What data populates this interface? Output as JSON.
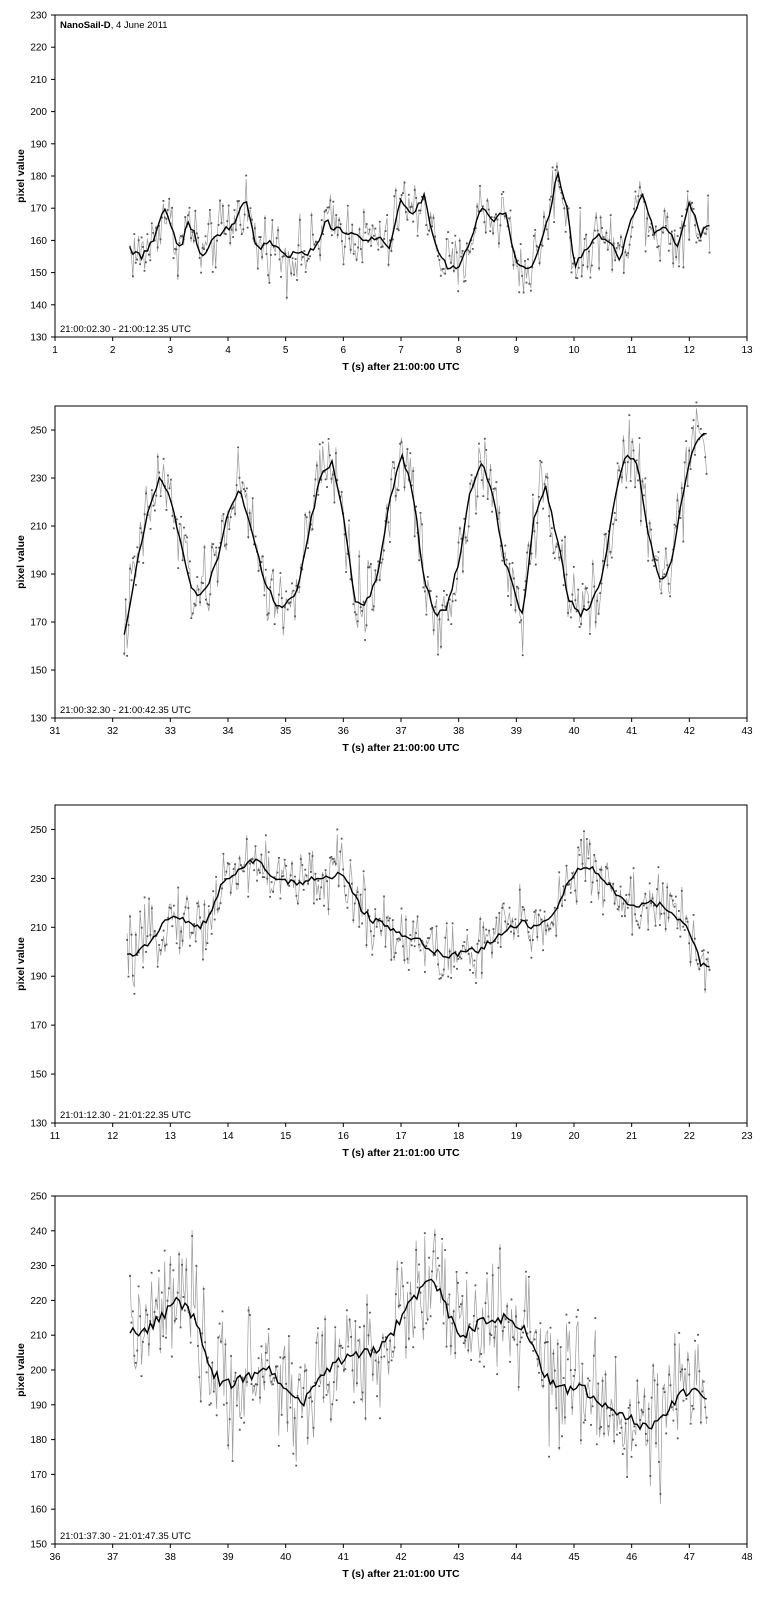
{
  "chart_data": [
    {
      "type": "line",
      "title_bold": "NanoSail-D",
      "title_rest": ", 4 June 2011",
      "xlabel": "T (s) after 21:00:00 UTC",
      "ylabel": "pixel value",
      "annotation": "21:00:02.30 - 21:00:12.35 UTC",
      "xlim": [
        1,
        13
      ],
      "ylim": [
        130,
        230
      ],
      "xticks": [
        1,
        2,
        3,
        4,
        5,
        6,
        7,
        8,
        9,
        10,
        11,
        12,
        13
      ],
      "yticks": [
        130,
        140,
        150,
        160,
        170,
        180,
        190,
        200,
        210,
        220,
        230
      ],
      "x_range": [
        2.3,
        12.35
      ],
      "series": [
        {
          "values_smooth_x": [
            2.3,
            2.5,
            2.7,
            2.9,
            3.1,
            3.2,
            3.3,
            3.4,
            3.5,
            3.6,
            3.7,
            3.9,
            4.1,
            4.3,
            4.4,
            4.5,
            4.7,
            4.9,
            5.0,
            5.2,
            5.4,
            5.6,
            5.7,
            5.8,
            5.9,
            6.0,
            6.2,
            6.4,
            6.6,
            6.8,
            7.0,
            7.2,
            7.4,
            7.6,
            7.8,
            8.0,
            8.2,
            8.4,
            8.6,
            8.8,
            9.0,
            9.2,
            9.4,
            9.6,
            9.7,
            9.8,
            9.9,
            10.0,
            10.2,
            10.4,
            10.6,
            10.8,
            11.0,
            11.2,
            11.4,
            11.6,
            11.8,
            12.0,
            12.2,
            12.35
          ],
          "values_smooth": [
            157,
            155,
            160,
            170,
            160,
            158,
            166,
            163,
            157,
            155,
            159,
            163,
            165,
            173,
            165,
            157,
            160,
            157,
            155,
            156,
            156,
            160,
            167,
            163,
            165,
            163,
            162,
            160,
            161,
            158,
            173,
            168,
            174,
            158,
            152,
            151,
            160,
            171,
            166,
            169,
            153,
            150,
            158,
            170,
            182,
            175,
            168,
            152,
            157,
            162,
            160,
            154,
            167,
            174,
            162,
            164,
            158,
            172,
            162,
            165
          ]
        }
      ]
    },
    {
      "type": "line",
      "xlabel": "T (s)  after 21:00:00 UTC",
      "ylabel": "pixel value",
      "annotation": "21:00:32.30 - 21:00:42.35 UTC",
      "xlim": [
        31,
        43
      ],
      "ylim": [
        130,
        260
      ],
      "xticks": [
        31,
        32,
        33,
        34,
        35,
        36,
        37,
        38,
        39,
        40,
        41,
        42,
        43
      ],
      "yticks": [
        130,
        150,
        170,
        190,
        210,
        230,
        250
      ],
      "x_range": [
        32.2,
        42.3
      ],
      "series": [
        {
          "values_smooth_x": [
            32.2,
            32.4,
            32.6,
            32.8,
            33.0,
            33.2,
            33.4,
            33.6,
            33.8,
            34.0,
            34.2,
            34.4,
            34.6,
            34.8,
            35.0,
            35.2,
            35.4,
            35.6,
            35.8,
            36.0,
            36.2,
            36.4,
            36.6,
            36.8,
            37.0,
            37.2,
            37.4,
            37.6,
            37.8,
            38.0,
            38.2,
            38.4,
            38.6,
            38.8,
            39.0,
            39.1,
            39.3,
            39.5,
            39.7,
            39.9,
            40.1,
            40.3,
            40.5,
            40.7,
            40.9,
            41.1,
            41.3,
            41.5,
            41.7,
            41.9,
            42.1,
            42.3
          ],
          "values_smooth": [
            165,
            192,
            214,
            230,
            222,
            200,
            182,
            182,
            195,
            216,
            226,
            210,
            190,
            178,
            177,
            183,
            208,
            230,
            237,
            215,
            178,
            178,
            190,
            220,
            240,
            225,
            188,
            172,
            176,
            195,
            225,
            237,
            222,
            195,
            180,
            172,
            212,
            227,
            206,
            180,
            173,
            178,
            190,
            220,
            240,
            235,
            205,
            186,
            196,
            225,
            245,
            248
          ]
        }
      ]
    },
    {
      "type": "line",
      "xlabel": "T (s)  after 21:01:00 UTC",
      "ylabel": "pixel value",
      "annotation": "21:01:12.30 - 21:01:22.35 UTC",
      "xlim": [
        11,
        23
      ],
      "ylim": [
        130,
        260
      ],
      "xticks": [
        11,
        12,
        13,
        14,
        15,
        16,
        17,
        18,
        19,
        20,
        21,
        22,
        23
      ],
      "yticks": [
        130,
        150,
        170,
        190,
        210,
        230,
        250
      ],
      "x_range": [
        12.25,
        22.35
      ],
      "series": [
        {
          "values_smooth_x": [
            12.3,
            12.5,
            12.7,
            12.9,
            13.1,
            13.3,
            13.5,
            13.7,
            13.9,
            14.1,
            14.3,
            14.5,
            14.7,
            14.9,
            15.1,
            15.3,
            15.5,
            15.7,
            15.9,
            16.1,
            16.3,
            16.5,
            16.7,
            16.9,
            17.1,
            17.3,
            17.5,
            17.7,
            17.9,
            18.1,
            18.3,
            18.5,
            18.7,
            18.9,
            19.1,
            19.3,
            19.5,
            19.7,
            19.9,
            20.1,
            20.3,
            20.5,
            20.7,
            20.9,
            21.1,
            21.3,
            21.5,
            21.7,
            21.9,
            22.1,
            22.2
          ],
          "values_smooth": [
            198,
            201,
            205,
            212,
            215,
            212,
            210,
            215,
            228,
            232,
            236,
            238,
            232,
            229,
            229,
            228,
            230,
            230,
            232,
            228,
            218,
            213,
            212,
            208,
            206,
            205,
            201,
            199,
            198,
            201,
            200,
            203,
            207,
            210,
            212,
            210,
            212,
            218,
            228,
            234,
            235,
            230,
            225,
            220,
            218,
            220,
            219,
            215,
            212,
            202,
            195
          ]
        }
      ]
    },
    {
      "type": "line",
      "xlabel": "T (s)  after 21:01:00 UTC",
      "ylabel": "pixel value",
      "annotation": "21:01:37.30 - 21:01:47.35 UTC",
      "xlim": [
        36,
        48
      ],
      "ylim": [
        150,
        250
      ],
      "xticks": [
        36,
        37,
        38,
        39,
        40,
        41,
        42,
        43,
        44,
        45,
        46,
        47,
        48
      ],
      "yticks": [
        150,
        160,
        170,
        180,
        190,
        200,
        210,
        220,
        230,
        240,
        250
      ],
      "x_range": [
        37.3,
        47.3
      ],
      "series": [
        {
          "values_smooth_x": [
            37.3,
            37.5,
            37.7,
            37.9,
            38.1,
            38.3,
            38.5,
            38.7,
            38.9,
            39.1,
            39.3,
            39.5,
            39.7,
            39.9,
            40.1,
            40.3,
            40.5,
            40.7,
            40.9,
            41.1,
            41.3,
            41.5,
            41.7,
            41.9,
            42.1,
            42.3,
            42.5,
            42.7,
            42.9,
            43.1,
            43.3,
            43.5,
            43.7,
            43.9,
            44.1,
            44.3,
            44.5,
            44.7,
            44.9,
            45.1,
            45.3,
            45.5,
            45.7,
            45.9,
            46.1,
            46.3,
            46.5,
            46.7,
            46.9,
            47.1,
            47.3
          ],
          "values_smooth": [
            211,
            210,
            213,
            216,
            220,
            218,
            212,
            200,
            196,
            196,
            198,
            198,
            200,
            197,
            193,
            190,
            195,
            199,
            202,
            204,
            205,
            205,
            208,
            212,
            219,
            222,
            226,
            222,
            213,
            210,
            213,
            214,
            215,
            214,
            212,
            208,
            198,
            195,
            194,
            195,
            193,
            190,
            189,
            187,
            185,
            183,
            186,
            190,
            194,
            194,
            192
          ]
        }
      ]
    }
  ]
}
